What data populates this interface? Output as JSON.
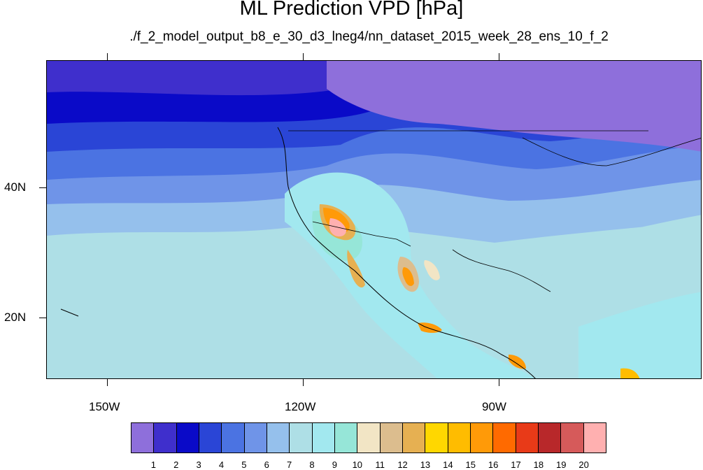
{
  "title": "ML Prediction VPD [hPa]",
  "subtitle": "./f_2_model_output_b8_e_30_d3_lneg4/nn_dataset_2015_week_28_ens_10_f_2",
  "map": {
    "projection": "cylindrical-equidistant",
    "lon_range": [
      -160,
      -60
    ],
    "lat_range": [
      11,
      60
    ],
    "variable": "VPD",
    "units": "hPa"
  },
  "axes": {
    "x_ticks": [
      "150W",
      "120W",
      "90W"
    ],
    "y_ticks": [
      "40N",
      "20N"
    ]
  },
  "colorbar": {
    "labels": [
      "1",
      "2",
      "3",
      "4",
      "5",
      "6",
      "7",
      "8",
      "9",
      "10",
      "11",
      "12",
      "13",
      "14",
      "15",
      "16",
      "17",
      "18",
      "19",
      "20"
    ],
    "colors": [
      "#8e6fdb",
      "#3f2fcc",
      "#0a0ac8",
      "#2a45d6",
      "#4b73e2",
      "#6f94e8",
      "#95c0ec",
      "#aedfe6",
      "#a2e8ef",
      "#96e6d8",
      "#f2e5c5",
      "#dcbd8e",
      "#e6b052",
      "#ffd700",
      "#ffbc00",
      "#ff9a08",
      "#ff6a00",
      "#e83a18",
      "#b8282a",
      "#d65a5a",
      "#ffb0b0"
    ]
  }
}
